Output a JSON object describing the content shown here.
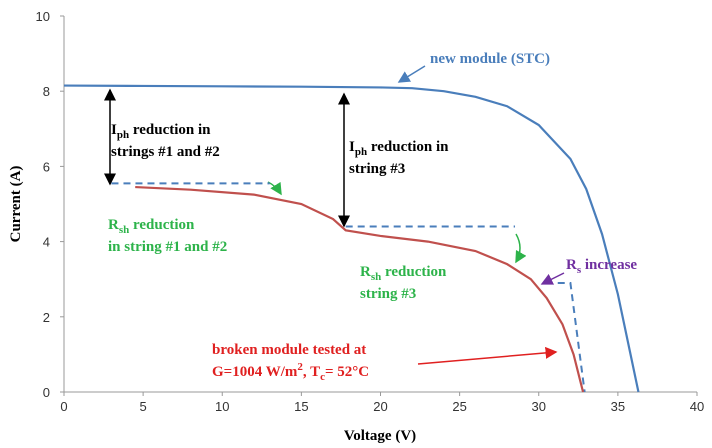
{
  "chart_data": {
    "type": "line",
    "x_label": "Voltage (V)",
    "y_label": "Current (A)",
    "xlim": [
      0,
      40
    ],
    "xticks": [
      0,
      5,
      10,
      15,
      20,
      25,
      30,
      35,
      40
    ],
    "ylim": [
      0,
      10
    ],
    "yticks": [
      0,
      2,
      4,
      6,
      8,
      10
    ],
    "grid": false,
    "series": [
      {
        "name": "new module  (STC)",
        "color": "#4a7ebb",
        "x": [
          0,
          5,
          10,
          15,
          20,
          22,
          24,
          26,
          28,
          30,
          32,
          33,
          34,
          35,
          35.8,
          36.3
        ],
        "values": [
          8.15,
          8.14,
          8.13,
          8.12,
          8.1,
          8.08,
          8.0,
          7.85,
          7.6,
          7.1,
          6.2,
          5.4,
          4.2,
          2.6,
          1.0,
          0
        ]
      },
      {
        "color": "#c0504d",
        "x": [
          4.5,
          8,
          12,
          15,
          17,
          17.8,
          20,
          23,
          26,
          28,
          29.5,
          30.5,
          31.5,
          32.2,
          32.8
        ],
        "values": [
          5.45,
          5.38,
          5.25,
          5.0,
          4.6,
          4.3,
          4.15,
          4.0,
          3.75,
          3.4,
          3.0,
          2.5,
          1.8,
          1.0,
          0
        ]
      }
    ],
    "reference_lines": [
      {
        "color": "#4a7ebb",
        "x": [
          3,
          13
        ],
        "y": [
          5.55,
          5.55
        ]
      },
      {
        "color": "#4a7ebb",
        "x": [
          17.8,
          28.5
        ],
        "y": [
          4.4,
          4.4
        ]
      },
      {
        "color": "#4a7ebb",
        "x": [
          31.2,
          32.0,
          32.9
        ],
        "y": [
          2.9,
          2.9,
          0
        ]
      }
    ],
    "annotations": [
      {
        "color": "#000000",
        "lines": [
          [
            {
              "text": "I"
            },
            {
              "text": "ph",
              "style": "sub"
            },
            {
              "text": " reduction  in"
            }
          ],
          [
            {
              "text": "strings #1 and #2"
            }
          ]
        ]
      },
      {
        "color": "#000000",
        "lines": [
          [
            {
              "text": "I"
            },
            {
              "text": "ph",
              "style": "sub"
            },
            {
              "text": " reduction  in"
            }
          ],
          [
            {
              "text": "string #3"
            }
          ]
        ]
      },
      {
        "color": "#2db34a",
        "lines": [
          [
            {
              "text": "R"
            },
            {
              "text": "sh",
              "style": "sub"
            },
            {
              "text": " reduction"
            }
          ],
          [
            {
              "text": " in string #1 and #2"
            }
          ]
        ]
      },
      {
        "color": "#2db34a",
        "lines": [
          [
            {
              "text": "R"
            },
            {
              "text": "sh",
              "style": "sub"
            },
            {
              "text": " reduction"
            }
          ],
          [
            {
              "text": "string #3"
            }
          ]
        ]
      },
      {
        "color": "#7030a0",
        "lines": [
          [
            {
              "text": "R"
            },
            {
              "text": "s",
              "style": "sub"
            },
            {
              "text": " increase"
            }
          ]
        ]
      },
      {
        "color": "#e02020",
        "lines": [
          [
            {
              "text": "broken module  tested at"
            }
          ],
          [
            {
              "text": "G=1004 W/m"
            },
            {
              "text": "2",
              "style": "sup"
            },
            {
              "text": ", T"
            },
            {
              "text": "c",
              "style": "sub"
            },
            {
              "text": "= 52°C"
            }
          ]
        ]
      }
    ]
  }
}
